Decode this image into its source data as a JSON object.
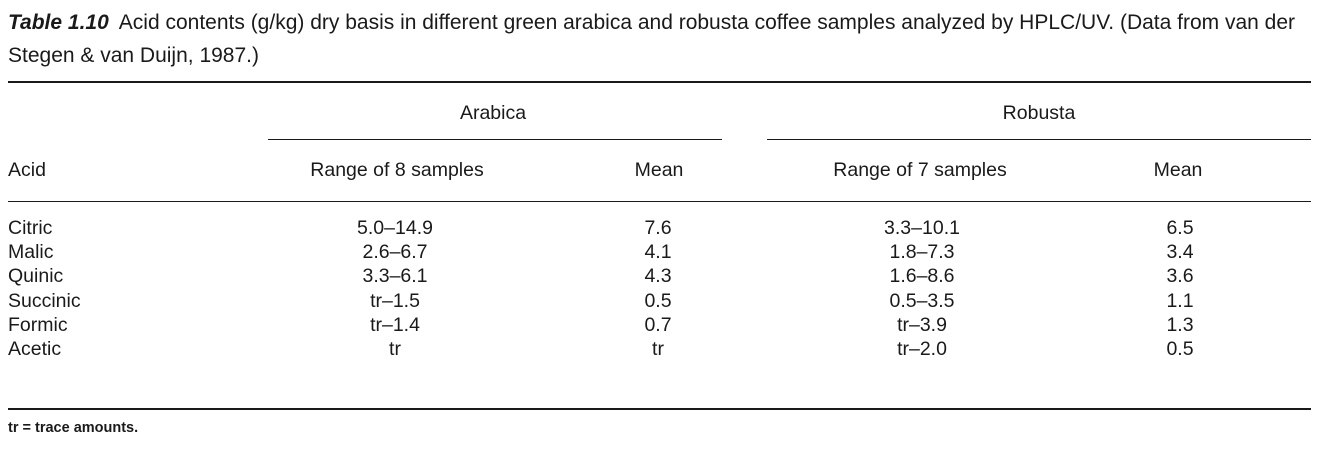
{
  "caption": {
    "label": "Table 1.10",
    "text": "Acid contents (g/kg) dry basis in different green arabica and robusta coffee samples analyzed by HPLC/UV. (Data from van der Stegen & van Duijn, 1987.)"
  },
  "table": {
    "group_headers": [
      "Arabica",
      "Robusta"
    ],
    "columns": [
      "Acid",
      "Range of 8 samples",
      "Mean",
      "Range of 7 samples",
      "Mean"
    ],
    "rows": [
      [
        "Citric",
        "5.0–14.9",
        "7.6",
        "3.3–10.1",
        "6.5"
      ],
      [
        "Malic",
        "2.6–6.7",
        "4.1",
        "1.8–7.3",
        "3.4"
      ],
      [
        "Quinic",
        "3.3–6.1",
        "4.3",
        "1.6–8.6",
        "3.6"
      ],
      [
        "Succinic",
        "tr–1.5",
        "0.5",
        "0.5–3.5",
        "1.1"
      ],
      [
        "Formic",
        "tr–1.4",
        "0.7",
        "tr–3.9",
        "1.3"
      ],
      [
        "Acetic",
        "tr",
        "tr",
        "tr–2.0",
        "0.5"
      ]
    ]
  },
  "footnote": "tr = trace amounts."
}
